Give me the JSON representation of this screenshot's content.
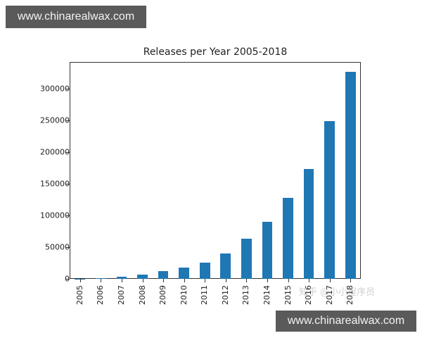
{
  "banners": {
    "top": "www.chinarealwax.com",
    "bottom": "www.chinarealwax.com"
  },
  "watermark": "知乎 @小小程序员",
  "chart_data": {
    "type": "bar",
    "title": "Releases per Year 2005-2018",
    "xlabel": "",
    "ylabel": "",
    "categories": [
      "2005",
      "2006",
      "2007",
      "2008",
      "2009",
      "2010",
      "2011",
      "2012",
      "2013",
      "2014",
      "2015",
      "2016",
      "2017",
      "2018"
    ],
    "values": [
      200,
      1000,
      3000,
      6700,
      12200,
      17800,
      25500,
      40000,
      63300,
      90000,
      127800,
      173300,
      248900,
      326600
    ],
    "yticks": [
      "0",
      "50000",
      "100000",
      "150000",
      "200000",
      "250000",
      "300000"
    ],
    "ylim": [
      0,
      342000
    ],
    "grid": false,
    "legend": null,
    "bar_color": "#1f77b4"
  }
}
